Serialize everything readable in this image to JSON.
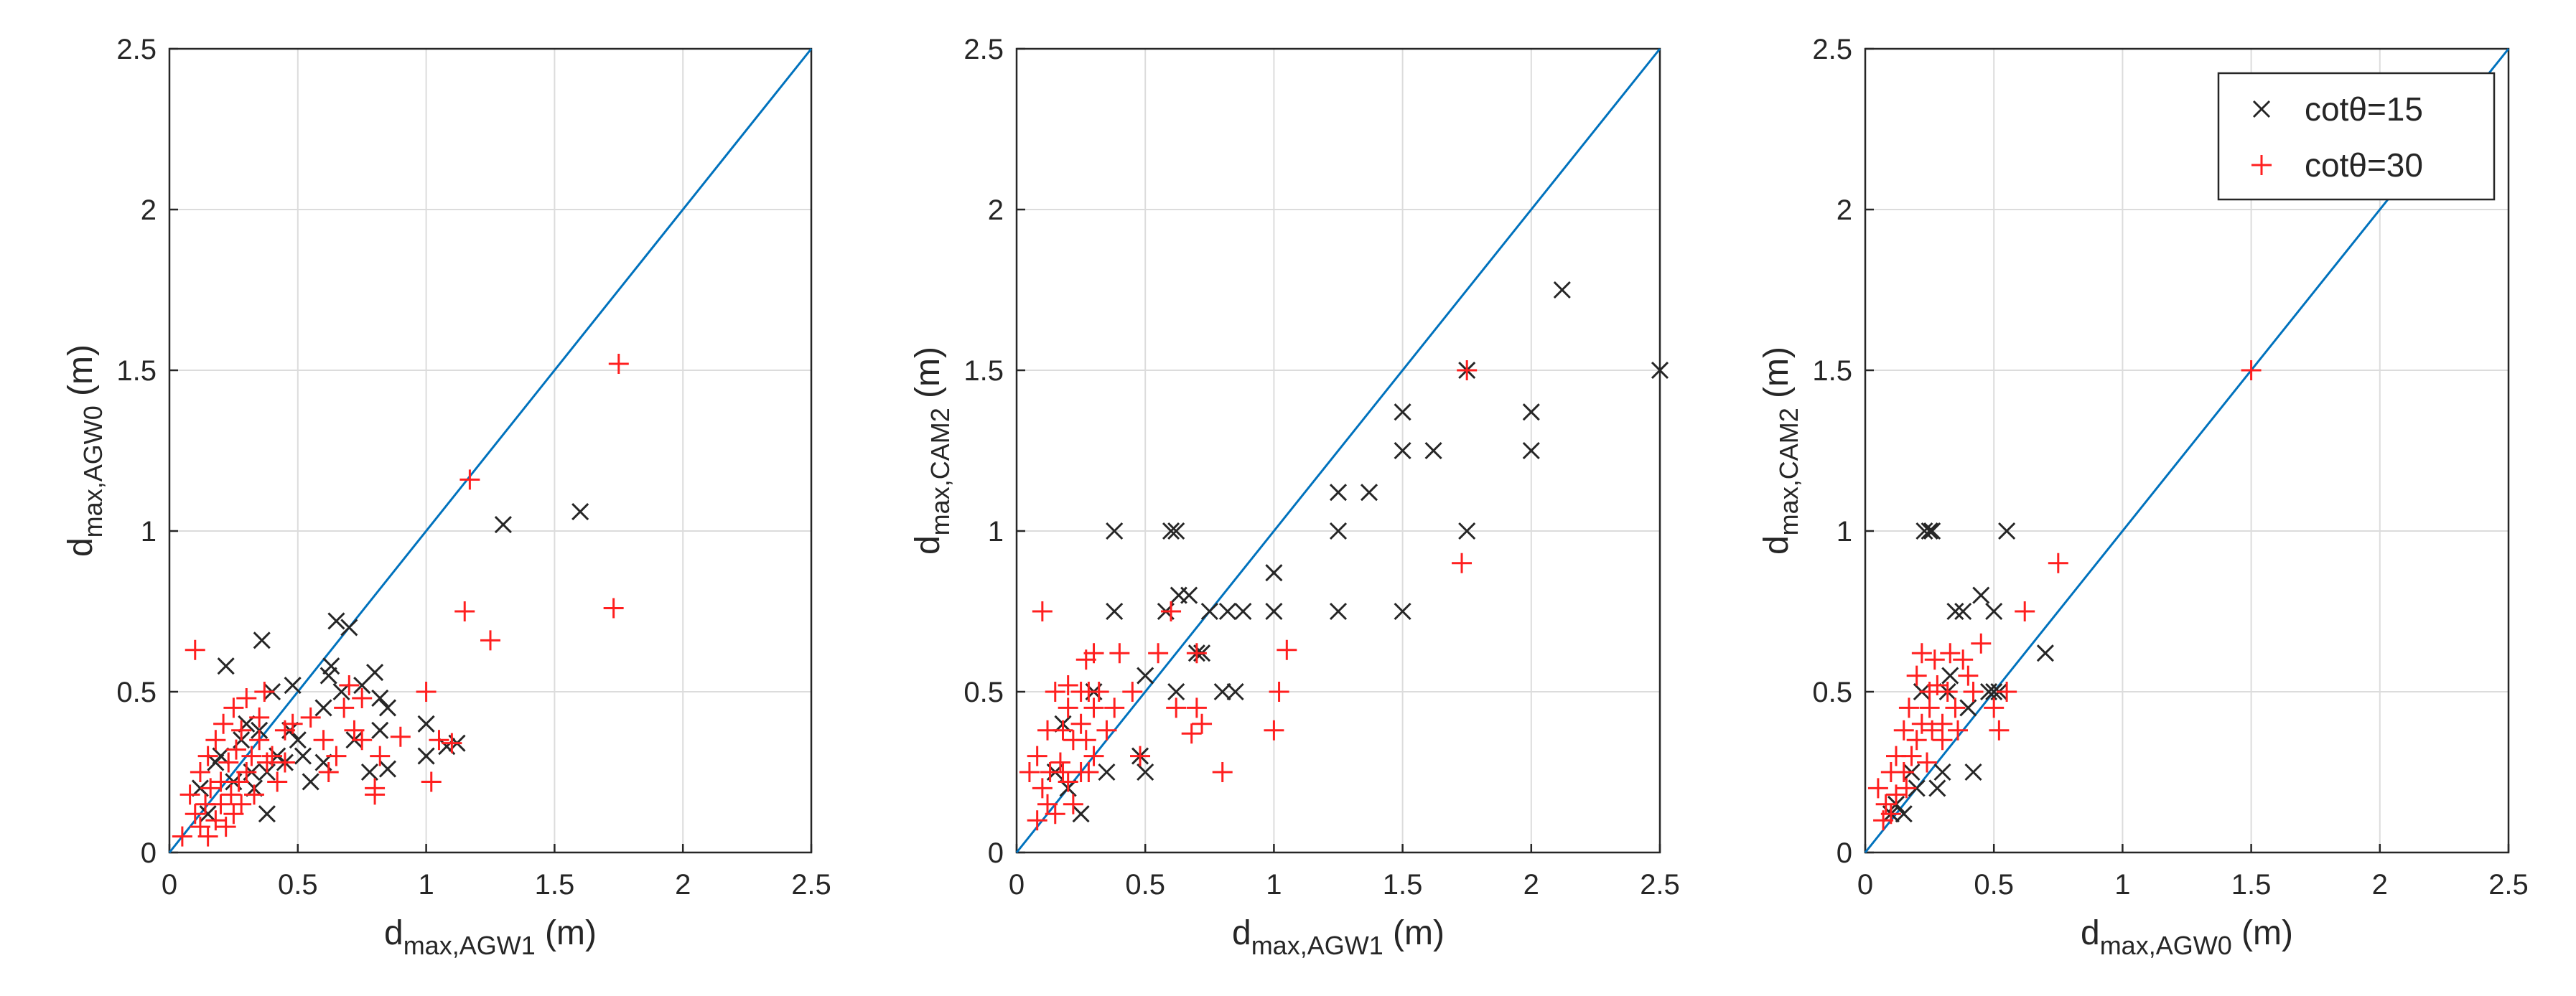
{
  "chart_data": [
    {
      "type": "scatter",
      "xlabel": {
        "base": "d",
        "sub": "max,AGW1",
        "unit": " (m)"
      },
      "ylabel": {
        "base": "d",
        "sub": "max,AGW0",
        "unit": " (m)"
      },
      "xlim": [
        0,
        2.5
      ],
      "ylim": [
        0,
        2.5
      ],
      "xticks": [
        "0",
        "0.5",
        "1",
        "1.5",
        "2",
        "2.5"
      ],
      "yticks": [
        "0",
        "0.5",
        "1",
        "1.5",
        "2",
        "2.5"
      ],
      "grid": true,
      "reference_line": "y = x",
      "series": [
        {
          "name": "cotθ=15",
          "marker": "x",
          "color": "#262626",
          "points": [
            [
              0.12,
              0.2
            ],
            [
              0.15,
              0.12
            ],
            [
              0.18,
              0.28
            ],
            [
              0.2,
              0.3
            ],
            [
              0.22,
              0.58
            ],
            [
              0.25,
              0.22
            ],
            [
              0.28,
              0.35
            ],
            [
              0.3,
              0.4
            ],
            [
              0.32,
              0.25
            ],
            [
              0.33,
              0.2
            ],
            [
              0.35,
              0.38
            ],
            [
              0.36,
              0.66
            ],
            [
              0.38,
              0.25
            ],
            [
              0.38,
              0.12
            ],
            [
              0.4,
              0.5
            ],
            [
              0.42,
              0.3
            ],
            [
              0.45,
              0.28
            ],
            [
              0.47,
              0.38
            ],
            [
              0.48,
              0.52
            ],
            [
              0.5,
              0.35
            ],
            [
              0.52,
              0.3
            ],
            [
              0.55,
              0.22
            ],
            [
              0.6,
              0.28
            ],
            [
              0.6,
              0.45
            ],
            [
              0.62,
              0.55
            ],
            [
              0.63,
              0.58
            ],
            [
              0.65,
              0.72
            ],
            [
              0.67,
              0.5
            ],
            [
              0.7,
              0.7
            ],
            [
              0.72,
              0.35
            ],
            [
              0.75,
              0.52
            ],
            [
              0.78,
              0.25
            ],
            [
              0.8,
              0.56
            ],
            [
              0.82,
              0.48
            ],
            [
              0.82,
              0.38
            ],
            [
              0.85,
              0.45
            ],
            [
              0.85,
              0.26
            ],
            [
              1.0,
              0.4
            ],
            [
              1.0,
              0.3
            ],
            [
              1.08,
              0.33
            ],
            [
              1.12,
              0.34
            ],
            [
              1.3,
              1.02
            ],
            [
              1.6,
              1.06
            ]
          ]
        },
        {
          "name": "cotθ=30",
          "marker": "+",
          "color": "#ff1f1f",
          "points": [
            [
              0.05,
              0.05
            ],
            [
              0.08,
              0.18
            ],
            [
              0.1,
              0.63
            ],
            [
              0.1,
              0.12
            ],
            [
              0.12,
              0.08
            ],
            [
              0.12,
              0.25
            ],
            [
              0.14,
              0.15
            ],
            [
              0.15,
              0.3
            ],
            [
              0.15,
              0.05
            ],
            [
              0.16,
              0.2
            ],
            [
              0.18,
              0.1
            ],
            [
              0.18,
              0.35
            ],
            [
              0.2,
              0.22
            ],
            [
              0.2,
              0.15
            ],
            [
              0.21,
              0.4
            ],
            [
              0.22,
              0.08
            ],
            [
              0.23,
              0.28
            ],
            [
              0.24,
              0.18
            ],
            [
              0.25,
              0.45
            ],
            [
              0.25,
              0.12
            ],
            [
              0.26,
              0.32
            ],
            [
              0.27,
              0.22
            ],
            [
              0.28,
              0.38
            ],
            [
              0.28,
              0.15
            ],
            [
              0.3,
              0.25
            ],
            [
              0.3,
              0.48
            ],
            [
              0.32,
              0.3
            ],
            [
              0.33,
              0.18
            ],
            [
              0.35,
              0.42
            ],
            [
              0.35,
              0.35
            ],
            [
              0.37,
              0.5
            ],
            [
              0.38,
              0.28
            ],
            [
              0.4,
              0.3
            ],
            [
              0.42,
              0.22
            ],
            [
              0.45,
              0.38
            ],
            [
              0.45,
              0.28
            ],
            [
              0.48,
              0.4
            ],
            [
              0.55,
              0.42
            ],
            [
              0.6,
              0.35
            ],
            [
              0.62,
              0.25
            ],
            [
              0.65,
              0.3
            ],
            [
              0.68,
              0.45
            ],
            [
              0.7,
              0.52
            ],
            [
              0.72,
              0.38
            ],
            [
              0.75,
              0.35
            ],
            [
              0.75,
              0.48
            ],
            [
              0.8,
              0.18
            ],
            [
              0.8,
              0.2
            ],
            [
              0.82,
              0.3
            ],
            [
              0.9,
              0.36
            ],
            [
              1.0,
              0.5
            ],
            [
              1.02,
              0.22
            ],
            [
              1.05,
              0.35
            ],
            [
              1.1,
              0.34
            ],
            [
              1.15,
              0.75
            ],
            [
              1.17,
              1.16
            ],
            [
              1.25,
              0.66
            ],
            [
              1.73,
              0.76
            ],
            [
              1.75,
              1.52
            ]
          ]
        }
      ]
    },
    {
      "type": "scatter",
      "xlabel": {
        "base": "d",
        "sub": "max,AGW1",
        "unit": " (m)"
      },
      "ylabel": {
        "base": "d",
        "sub": "max,CAM2",
        "unit": " (m)"
      },
      "xlim": [
        0,
        2.5
      ],
      "ylim": [
        0,
        2.5
      ],
      "xticks": [
        "0",
        "0.5",
        "1",
        "1.5",
        "2",
        "2.5"
      ],
      "yticks": [
        "0",
        "0.5",
        "1",
        "1.5",
        "2",
        "2.5"
      ],
      "grid": true,
      "reference_line": "y = x",
      "series": [
        {
          "name": "cotθ=15",
          "marker": "x",
          "color": "#262626",
          "points": [
            [
              0.15,
              0.25
            ],
            [
              0.18,
              0.4
            ],
            [
              0.2,
              0.2
            ],
            [
              0.25,
              0.12
            ],
            [
              0.3,
              0.5
            ],
            [
              0.35,
              0.25
            ],
            [
              0.38,
              0.75
            ],
            [
              0.38,
              1.0
            ],
            [
              0.48,
              0.3
            ],
            [
              0.5,
              0.25
            ],
            [
              0.5,
              0.55
            ],
            [
              0.58,
              0.75
            ],
            [
              0.6,
              1.0
            ],
            [
              0.62,
              1.0
            ],
            [
              0.62,
              0.5
            ],
            [
              0.63,
              0.8
            ],
            [
              0.67,
              0.8
            ],
            [
              0.7,
              0.62
            ],
            [
              0.72,
              0.62
            ],
            [
              0.75,
              0.75
            ],
            [
              0.8,
              0.5
            ],
            [
              0.82,
              0.75
            ],
            [
              0.85,
              0.5
            ],
            [
              0.88,
              0.75
            ],
            [
              1.0,
              0.75
            ],
            [
              1.0,
              0.87
            ],
            [
              1.25,
              0.75
            ],
            [
              1.25,
              1.0
            ],
            [
              1.25,
              1.12
            ],
            [
              1.37,
              1.12
            ],
            [
              1.5,
              1.37
            ],
            [
              1.5,
              1.25
            ],
            [
              1.5,
              0.75
            ],
            [
              1.62,
              1.25
            ],
            [
              1.75,
              1.0
            ],
            [
              1.75,
              1.5
            ],
            [
              2.0,
              1.25
            ],
            [
              2.0,
              1.37
            ],
            [
              2.12,
              1.75
            ],
            [
              2.5,
              1.5
            ]
          ]
        },
        {
          "name": "cotθ=30",
          "marker": "+",
          "color": "#ff1f1f",
          "points": [
            [
              0.05,
              0.25
            ],
            [
              0.08,
              0.1
            ],
            [
              0.08,
              0.3
            ],
            [
              0.1,
              0.75
            ],
            [
              0.1,
              0.2
            ],
            [
              0.12,
              0.38
            ],
            [
              0.12,
              0.15
            ],
            [
              0.13,
              0.25
            ],
            [
              0.15,
              0.5
            ],
            [
              0.15,
              0.12
            ],
            [
              0.17,
              0.28
            ],
            [
              0.18,
              0.38
            ],
            [
              0.18,
              0.25
            ],
            [
              0.2,
              0.52
            ],
            [
              0.2,
              0.45
            ],
            [
              0.2,
              0.22
            ],
            [
              0.22,
              0.35
            ],
            [
              0.22,
              0.15
            ],
            [
              0.25,
              0.25
            ],
            [
              0.25,
              0.5
            ],
            [
              0.25,
              0.4
            ],
            [
              0.27,
              0.6
            ],
            [
              0.27,
              0.35
            ],
            [
              0.28,
              0.25
            ],
            [
              0.28,
              0.5
            ],
            [
              0.3,
              0.62
            ],
            [
              0.3,
              0.45
            ],
            [
              0.3,
              0.3
            ],
            [
              0.32,
              0.5
            ],
            [
              0.35,
              0.38
            ],
            [
              0.38,
              0.45
            ],
            [
              0.4,
              0.62
            ],
            [
              0.45,
              0.5
            ],
            [
              0.48,
              0.3
            ],
            [
              0.55,
              0.62
            ],
            [
              0.6,
              0.75
            ],
            [
              0.62,
              0.45
            ],
            [
              0.68,
              0.37
            ],
            [
              0.7,
              0.45
            ],
            [
              0.7,
              0.62
            ],
            [
              0.72,
              0.4
            ],
            [
              0.8,
              0.25
            ],
            [
              1.0,
              0.38
            ],
            [
              1.02,
              0.5
            ],
            [
              1.05,
              0.63
            ],
            [
              1.73,
              0.9
            ],
            [
              1.75,
              1.5
            ]
          ]
        }
      ]
    },
    {
      "type": "scatter",
      "xlabel": {
        "base": "d",
        "sub": "max,AGW0",
        "unit": " (m)"
      },
      "ylabel": {
        "base": "d",
        "sub": "max,CAM2",
        "unit": " (m)"
      },
      "xlim": [
        0,
        2.5
      ],
      "ylim": [
        0,
        2.5
      ],
      "xticks": [
        "0",
        "0.5",
        "1",
        "1.5",
        "2",
        "2.5"
      ],
      "yticks": [
        "0",
        "0.5",
        "1",
        "1.5",
        "2",
        "2.5"
      ],
      "grid": true,
      "reference_line": "y = x",
      "series": [
        {
          "name": "cotθ=15",
          "marker": "x",
          "color": "#262626",
          "points": [
            [
              0.1,
              0.12
            ],
            [
              0.12,
              0.15
            ],
            [
              0.15,
              0.12
            ],
            [
              0.18,
              0.25
            ],
            [
              0.2,
              0.2
            ],
            [
              0.22,
              0.5
            ],
            [
              0.23,
              1.0
            ],
            [
              0.25,
              1.0
            ],
            [
              0.26,
              1.0
            ],
            [
              0.28,
              0.2
            ],
            [
              0.3,
              0.25
            ],
            [
              0.32,
              0.5
            ],
            [
              0.33,
              0.55
            ],
            [
              0.35,
              0.75
            ],
            [
              0.38,
              0.75
            ],
            [
              0.4,
              0.45
            ],
            [
              0.42,
              0.25
            ],
            [
              0.45,
              0.8
            ],
            [
              0.48,
              0.5
            ],
            [
              0.5,
              0.75
            ],
            [
              0.5,
              0.5
            ],
            [
              0.52,
              0.5
            ],
            [
              0.55,
              1.0
            ],
            [
              0.7,
              0.62
            ]
          ]
        },
        {
          "name": "cotθ=30",
          "marker": "+",
          "color": "#ff1f1f",
          "points": [
            [
              0.05,
              0.2
            ],
            [
              0.07,
              0.1
            ],
            [
              0.08,
              0.15
            ],
            [
              0.1,
              0.25
            ],
            [
              0.1,
              0.12
            ],
            [
              0.12,
              0.3
            ],
            [
              0.12,
              0.18
            ],
            [
              0.15,
              0.25
            ],
            [
              0.15,
              0.38
            ],
            [
              0.16,
              0.2
            ],
            [
              0.17,
              0.45
            ],
            [
              0.18,
              0.3
            ],
            [
              0.2,
              0.55
            ],
            [
              0.2,
              0.35
            ],
            [
              0.22,
              0.62
            ],
            [
              0.22,
              0.4
            ],
            [
              0.24,
              0.28
            ],
            [
              0.25,
              0.5
            ],
            [
              0.25,
              0.45
            ],
            [
              0.26,
              0.38
            ],
            [
              0.27,
              0.6
            ],
            [
              0.28,
              0.52
            ],
            [
              0.3,
              0.4
            ],
            [
              0.3,
              0.35
            ],
            [
              0.32,
              0.5
            ],
            [
              0.33,
              0.62
            ],
            [
              0.35,
              0.45
            ],
            [
              0.36,
              0.38
            ],
            [
              0.38,
              0.6
            ],
            [
              0.4,
              0.55
            ],
            [
              0.42,
              0.5
            ],
            [
              0.45,
              0.65
            ],
            [
              0.5,
              0.45
            ],
            [
              0.52,
              0.38
            ],
            [
              0.55,
              0.5
            ],
            [
              0.62,
              0.75
            ],
            [
              0.75,
              0.9
            ],
            [
              1.5,
              1.5
            ]
          ]
        }
      ],
      "legend": {
        "position": "top-right",
        "entries": [
          "cotθ=15",
          "cotθ=30"
        ]
      }
    }
  ]
}
